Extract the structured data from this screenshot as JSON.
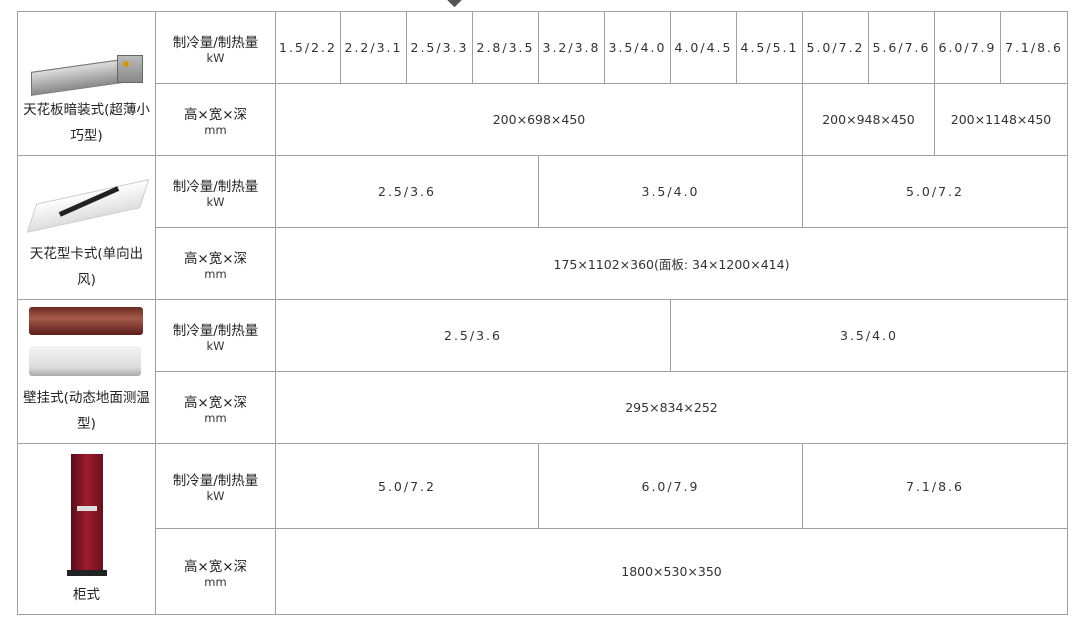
{
  "products": [
    {
      "name": "天花板暗装式(超薄小巧型)",
      "image": "ceiling-concealed-duct-unit",
      "rows": [
        {
          "label": "制冷量/制热量",
          "unit": "kW",
          "kind": "val",
          "cells": [
            {
              "value": "1.5/2.2",
              "span": 1
            },
            {
              "value": "2.2/3.1",
              "span": 1
            },
            {
              "value": "2.5/3.3",
              "span": 1
            },
            {
              "value": "2.8/3.5",
              "span": 1
            },
            {
              "value": "3.2/3.8",
              "span": 1
            },
            {
              "value": "3.5/4.0",
              "span": 1
            },
            {
              "value": "4.0/4.5",
              "span": 1
            },
            {
              "value": "4.5/5.1",
              "span": 1
            },
            {
              "value": "5.0/7.2",
              "span": 1
            },
            {
              "value": "5.6/7.6",
              "span": 1
            },
            {
              "value": "6.0/7.9",
              "span": 1
            },
            {
              "value": "7.1/8.6",
              "span": 1
            }
          ]
        },
        {
          "label": "高×宽×深",
          "unit": "mm",
          "kind": "dim",
          "cells": [
            {
              "value": "200×698×450",
              "span": 8
            },
            {
              "value": "200×948×450",
              "span": 2
            },
            {
              "value": "200×1148×450",
              "span": 2
            }
          ]
        }
      ]
    },
    {
      "name": "天花型卡式(单向出风)",
      "image": "one-way-cassette-unit",
      "rows": [
        {
          "label": "制冷量/制热量",
          "unit": "kW",
          "kind": "val",
          "cells": [
            {
              "value": "2.5/3.6",
              "span": 4
            },
            {
              "value": "3.5/4.0",
              "span": 4
            },
            {
              "value": "5.0/7.2",
              "span": 4
            }
          ]
        },
        {
          "label": "高×宽×深",
          "unit": "mm",
          "kind": "dim",
          "cells": [
            {
              "value": "175×1102×360(面板: 34×1200×414)",
              "span": 12
            }
          ]
        }
      ]
    },
    {
      "name": "壁挂式(动态地面测温型)",
      "image": "wall-mounted-unit",
      "rows": [
        {
          "label": "制冷量/制热量",
          "unit": "kW",
          "kind": "val",
          "cells": [
            {
              "value": "2.5/3.6",
              "span": 6
            },
            {
              "value": "3.5/4.0",
              "span": 6
            }
          ]
        },
        {
          "label": "高×宽×深",
          "unit": "mm",
          "kind": "dim",
          "cells": [
            {
              "value": "295×834×252",
              "span": 12
            }
          ]
        }
      ]
    },
    {
      "name": "柜式",
      "image": "floor-standing-cabinet-unit",
      "rows": [
        {
          "label": "制冷量/制热量",
          "unit": "kW",
          "kind": "val",
          "cells": [
            {
              "value": "5.0/7.2",
              "span": 4
            },
            {
              "value": "6.0/7.9",
              "span": 4
            },
            {
              "value": "7.1/8.6",
              "span": 4
            }
          ]
        },
        {
          "label": "高×宽×深",
          "unit": "mm",
          "kind": "dim",
          "cells": [
            {
              "value": "1800×530×350",
              "span": 12
            }
          ]
        }
      ]
    }
  ]
}
